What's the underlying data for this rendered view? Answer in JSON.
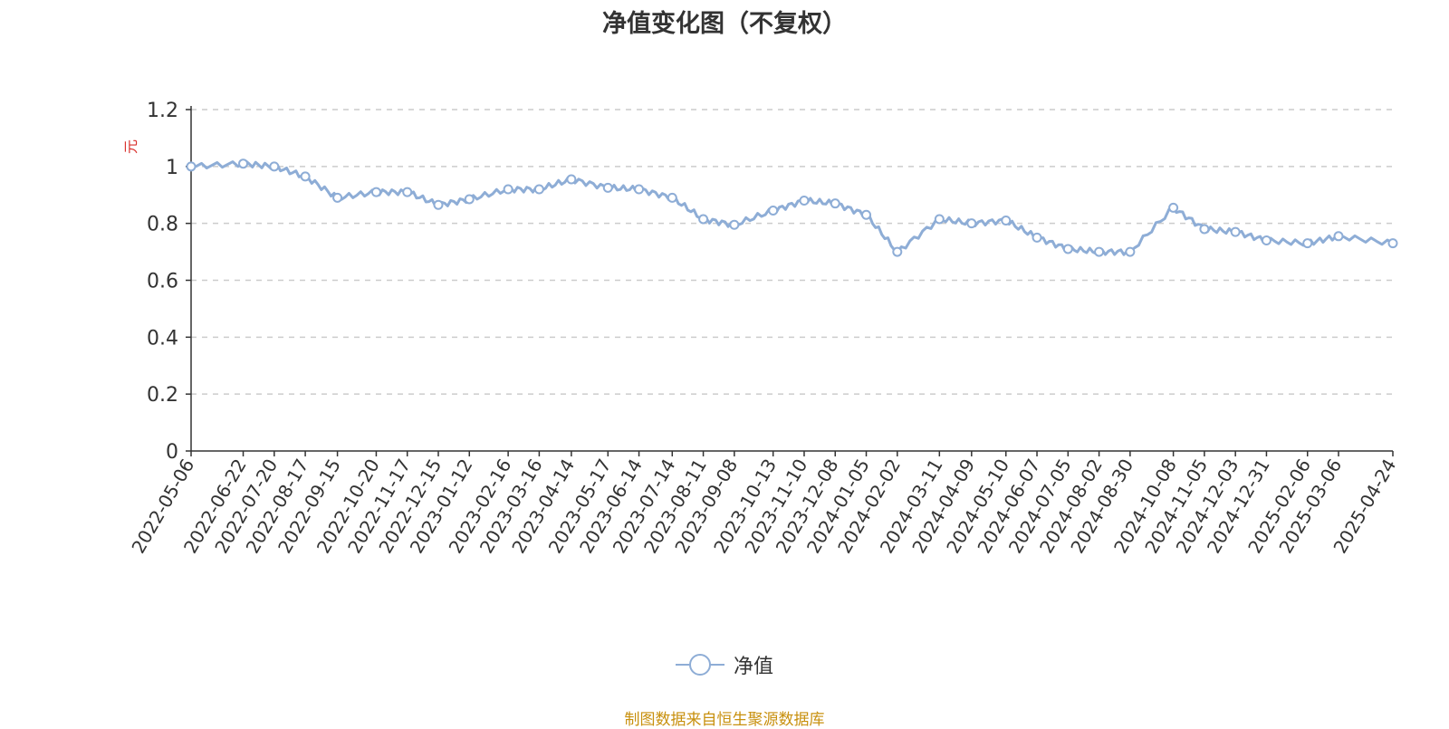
{
  "chart_data": {
    "type": "line",
    "title": "净值变化图（不复权）",
    "ylabel": "元",
    "ylim": [
      0,
      1.2
    ],
    "yticks": [
      "0",
      "0.2",
      "0.4",
      "0.6",
      "0.8",
      "1",
      "1.2"
    ],
    "grid": true,
    "legend_position": "bottom",
    "xticks": [
      "2022-05-06",
      "2022-06-22",
      "2022-07-20",
      "2022-08-17",
      "2022-09-15",
      "2022-10-20",
      "2022-11-17",
      "2022-12-15",
      "2023-01-12",
      "2023-02-16",
      "2023-03-16",
      "2023-04-14",
      "2023-05-17",
      "2023-06-14",
      "2023-07-14",
      "2023-08-11",
      "2023-09-08",
      "2023-10-13",
      "2023-11-10",
      "2023-12-08",
      "2024-01-05",
      "2024-02-02",
      "2024-03-11",
      "2024-04-09",
      "2024-05-10",
      "2024-06-07",
      "2024-07-05",
      "2024-08-02",
      "2024-08-30",
      "2024-10-08",
      "2024-11-05",
      "2024-12-03",
      "2024-12-31",
      "2025-02-06",
      "2025-03-06",
      "2025-04-24"
    ],
    "series": [
      {
        "name": "净值",
        "color": "#8eadd6",
        "x": [
          "2022-05-06",
          "2022-06-22",
          "2022-07-20",
          "2022-08-17",
          "2022-09-15",
          "2022-10-20",
          "2022-11-17",
          "2022-12-15",
          "2023-01-12",
          "2023-02-16",
          "2023-03-16",
          "2023-04-14",
          "2023-05-17",
          "2023-06-14",
          "2023-07-14",
          "2023-08-11",
          "2023-09-08",
          "2023-10-13",
          "2023-11-10",
          "2023-12-08",
          "2024-01-05",
          "2024-02-02",
          "2024-03-11",
          "2024-04-09",
          "2024-05-10",
          "2024-06-07",
          "2024-07-05",
          "2024-08-02",
          "2024-08-30",
          "2024-10-08",
          "2024-11-05",
          "2024-12-03",
          "2024-12-31",
          "2025-02-06",
          "2025-03-06",
          "2025-04-24"
        ],
        "values": [
          1.0,
          1.01,
          1.0,
          0.965,
          0.89,
          0.91,
          0.91,
          0.865,
          0.885,
          0.92,
          0.92,
          0.955,
          0.925,
          0.92,
          0.89,
          0.815,
          0.795,
          0.845,
          0.88,
          0.87,
          0.83,
          0.7,
          0.815,
          0.8,
          0.81,
          0.75,
          0.71,
          0.7,
          0.7,
          0.855,
          0.78,
          0.77,
          0.74,
          0.73,
          0.755,
          0.73
        ]
      }
    ]
  },
  "legend": {
    "label": "净值"
  },
  "source_note": "制图数据来自恒生聚源数据库"
}
